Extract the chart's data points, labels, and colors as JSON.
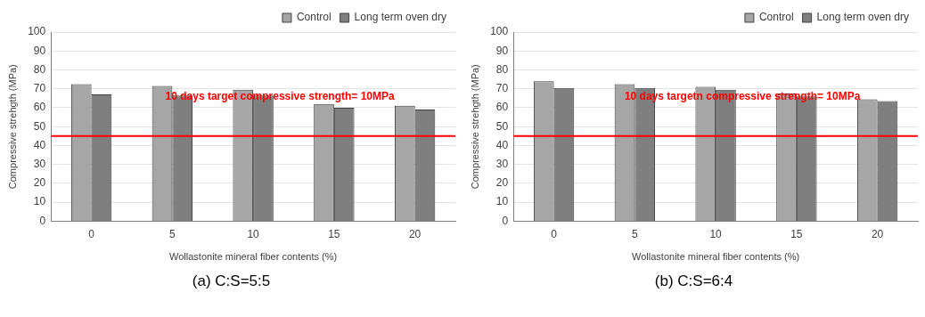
{
  "chart_data": [
    {
      "type": "bar",
      "title": "(a) C:S=5:5",
      "categories": [
        "0",
        "5",
        "10",
        "15",
        "20"
      ],
      "xlabel": "Wollastonite mineral fiber contents (%)",
      "ylabel": "Compressive strehgth (MPa)",
      "series": [
        {
          "name": "Control",
          "color": "#a6a6a6",
          "values": [
            72.5,
            71.5,
            69.5,
            62,
            61
          ]
        },
        {
          "name": "Long term oven dry",
          "color": "#7f7f7f",
          "values": [
            67,
            66.5,
            66.5,
            60,
            59
          ]
        }
      ],
      "ylim": [
        0,
        100
      ],
      "yticks": [
        0,
        10,
        20,
        30,
        40,
        50,
        60,
        70,
        80,
        90,
        100
      ],
      "grid": "y",
      "legend": "top right",
      "ref_lines": [
        {
          "axis": "y",
          "value": 45,
          "color": "#ff0000"
        }
      ],
      "annotations": [
        "10 days target compressive strength= 10MPa"
      ]
    },
    {
      "type": "bar",
      "title": "(b) C:S=6:4",
      "categories": [
        "0",
        "5",
        "10",
        "15",
        "20"
      ],
      "xlabel": "Wollastonite mineral fiber contents (%)",
      "ylabel": "Compressive strehgth (MPa)",
      "series": [
        {
          "name": "Control",
          "color": "#a6a6a6",
          "values": [
            74,
            72.5,
            71,
            67.5,
            64.5
          ]
        },
        {
          "name": "Long term oven dry",
          "color": "#7f7f7f",
          "values": [
            70.5,
            70.5,
            69.5,
            66,
            63.5
          ]
        }
      ],
      "ylim": [
        0,
        100
      ],
      "yticks": [
        0,
        10,
        20,
        30,
        40,
        50,
        60,
        70,
        80,
        90,
        100
      ],
      "grid": "y",
      "legend": "top right",
      "ref_lines": [
        {
          "axis": "y",
          "value": 45,
          "color": "#ff0000"
        }
      ],
      "annotations": [
        "10 days targetn compressive strength= 10MPa"
      ]
    }
  ]
}
